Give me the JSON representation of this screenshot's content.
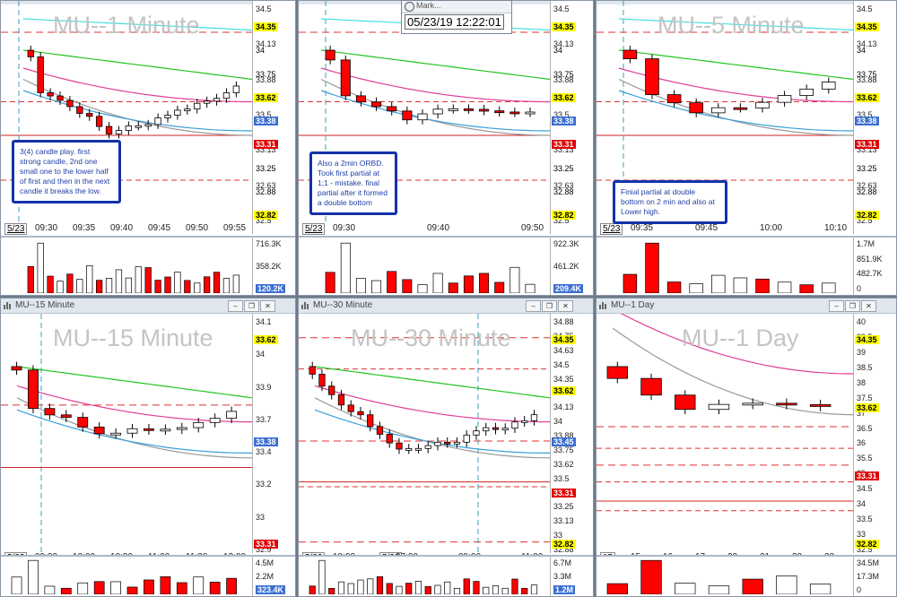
{
  "popup": {
    "title": "Mark...",
    "datetime": "05/23/19 12:22:01"
  },
  "panes": [
    {
      "id": "p1",
      "watermark": "MU--1 Minute",
      "title": "",
      "yticks": [
        "34.5",
        "34.13",
        "33.88",
        "33.5",
        "33.13",
        "32.63",
        "32.5"
      ],
      "flags": [
        {
          "text": "34.35",
          "style": "y"
        },
        {
          "text": "34",
          "style": "none"
        },
        {
          "text": "33.75",
          "style": "none"
        },
        {
          "text": "33.62",
          "style": "y"
        },
        {
          "text": "33.38",
          "style": "b"
        },
        {
          "text": "33.31",
          "style": "r"
        },
        {
          "text": "33.25",
          "style": "none"
        },
        {
          "text": "32.88",
          "style": "none"
        },
        {
          "text": "32.82",
          "style": "y"
        }
      ],
      "date_tag": "5/23",
      "xlabels": [
        "09:30",
        "09:35",
        "09:40",
        "09:45",
        "09:50",
        "09:55"
      ],
      "vol_labels": [
        "716.3K",
        "358.2K",
        "120.2K"
      ],
      "note": "3(4) candle play. first strong candle, 2nd one small one to the lower half of first and then in the next candle it breaks the low."
    },
    {
      "id": "p2",
      "watermark": "",
      "title": "",
      "yticks": [
        "34.5",
        "34.13",
        "33.88",
        "33.5",
        "33.13",
        "32.63",
        "32.5"
      ],
      "flags": [
        {
          "text": "34.35",
          "style": "y"
        },
        {
          "text": "34",
          "style": "none"
        },
        {
          "text": "33.75",
          "style": "none"
        },
        {
          "text": "33.62",
          "style": "y"
        },
        {
          "text": "33.38",
          "style": "b"
        },
        {
          "text": "33.31",
          "style": "r"
        },
        {
          "text": "33.25",
          "style": "none"
        },
        {
          "text": "32.88",
          "style": "none"
        },
        {
          "text": "32.82",
          "style": "y"
        }
      ],
      "date_tag": "5/23",
      "xlabels": [
        "09:30",
        "09:40",
        "09:50"
      ],
      "vol_labels": [
        "922.3K",
        "461.2K",
        "209.4K"
      ],
      "note": "Also a 2min ORBD. Took first partial at 1;1 - mistake. final partial after it formed a double bottom"
    },
    {
      "id": "p3",
      "watermark": "MU--5 Minute",
      "title": "",
      "yticks": [
        "34.5",
        "34.13",
        "33.88",
        "33.5",
        "33.13",
        "32.63",
        "32.5"
      ],
      "flags": [
        {
          "text": "34.35",
          "style": "y"
        },
        {
          "text": "34",
          "style": "none"
        },
        {
          "text": "33.75",
          "style": "none"
        },
        {
          "text": "33.62",
          "style": "y"
        },
        {
          "text": "33.38",
          "style": "b"
        },
        {
          "text": "33.31",
          "style": "r"
        },
        {
          "text": "33.25",
          "style": "none"
        },
        {
          "text": "32.88",
          "style": "none"
        },
        {
          "text": "32.82",
          "style": "y"
        }
      ],
      "date_tag": "5/23",
      "xlabels": [
        "09:35",
        "09:45",
        "10:00",
        "10:10"
      ],
      "vol_labels": [
        "1.7M",
        "851.9K",
        "482.7K",
        "0"
      ],
      "note": "Finial partial at double bottom on 2 min and also at Lower high."
    },
    {
      "id": "p4",
      "watermark": "MU--15 Minute",
      "title": "MU--15 Minute",
      "yticks": [
        "34.1",
        "34",
        "33.9",
        "33.7",
        "33.4",
        "33.2",
        "33",
        "32.9"
      ],
      "flags": [
        {
          "text": "33.62",
          "style": "y"
        },
        {
          "text": "33.38",
          "style": "b"
        },
        {
          "text": "33.31",
          "style": "r"
        }
      ],
      "date_tag": "5/23",
      "xlabels": [
        "09:30",
        "10:00",
        "10:30",
        "11:00",
        "11:30",
        "12:00"
      ],
      "vol_labels": [
        "4.5M",
        "2.2M",
        "323.4K"
      ],
      "note": ""
    },
    {
      "id": "p5",
      "watermark": "MU--30 Minute",
      "title": "MU--30 Minute",
      "yticks": [
        "34.88",
        "34.75",
        "34.63",
        "34.5",
        "34.35",
        "34.25",
        "34.13",
        "34",
        "33.88",
        "33.75",
        "33.62",
        "33.5",
        "33.38",
        "33.25",
        "33.13",
        "33",
        "32.88"
      ],
      "flags": [
        {
          "text": "34.35",
          "style": "y"
        },
        {
          "text": "33.62",
          "style": "y"
        },
        {
          "text": "33.45",
          "style": "b"
        },
        {
          "text": "33.31",
          "style": "r"
        },
        {
          "text": "32.82",
          "style": "y"
        }
      ],
      "date_tag": "5/22",
      "date_tag2": "5/23",
      "xlabels": [
        "18:00",
        "07:00",
        "09:00",
        "11:00"
      ],
      "vol_labels": [
        "6.7M",
        "3.3M",
        "1.2M"
      ],
      "note": ""
    },
    {
      "id": "p6",
      "watermark": "MU--1 Day",
      "title": "MU--1 Day",
      "yticks": [
        "40",
        "39.5",
        "39",
        "38.5",
        "38",
        "37.5",
        "37",
        "36.5",
        "36",
        "35.5",
        "35",
        "34.5",
        "34",
        "33.5",
        "33",
        "32.5"
      ],
      "flags": [
        {
          "text": "34.35",
          "style": "y"
        },
        {
          "text": "33.62",
          "style": "y"
        },
        {
          "text": "33.31",
          "style": "r"
        },
        {
          "text": "32.82",
          "style": "y"
        }
      ],
      "date_tag": "15",
      "xlabels": [
        "15",
        "16",
        "17",
        "20",
        "21",
        "22",
        "23"
      ],
      "vol_labels": [
        "34.5M",
        "17.3M",
        "0"
      ],
      "note": ""
    }
  ],
  "colors": {
    "up": "#ffffff",
    "down": "#ff0000",
    "ma_fast": "#3aa0d8",
    "ma_mid": "#9a9a9a",
    "ma_slow": "#e0409a",
    "ma_green": "#22c422",
    "ma_cyan": "#40e0e0",
    "level": "#e03030"
  }
}
